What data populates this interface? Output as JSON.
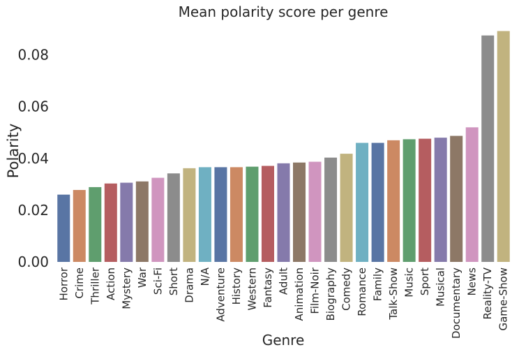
{
  "chart_data": {
    "type": "bar",
    "title": "Mean polarity score per genre",
    "xlabel": "Genre",
    "ylabel": "Polarity",
    "ylim": [
      0,
      0.09
    ],
    "yticks": [
      0.0,
      0.02,
      0.04,
      0.06,
      0.08
    ],
    "ytick_labels": [
      "0.00",
      "0.02",
      "0.04",
      "0.06",
      "0.08"
    ],
    "grid": false,
    "categories": [
      "Horror",
      "Crime",
      "Thriller",
      "Action",
      "Mystery",
      "War",
      "Sci-Fi",
      "Short",
      "Drama",
      "N/A",
      "Adventure",
      "History",
      "Western",
      "Fantasy",
      "Adult",
      "Animation",
      "Film-Noir",
      "Biography",
      "Comedy",
      "Romance",
      "Family",
      "Talk-Show",
      "Music",
      "Sport",
      "Musical",
      "Documentary",
      "News",
      "Reality-TV",
      "Game-Show"
    ],
    "values": [
      0.026,
      0.0278,
      0.0289,
      0.0303,
      0.0306,
      0.0311,
      0.0325,
      0.0342,
      0.0362,
      0.0366,
      0.0366,
      0.0366,
      0.0368,
      0.0371,
      0.0381,
      0.0384,
      0.0387,
      0.0403,
      0.0418,
      0.046,
      0.046,
      0.047,
      0.0474,
      0.0476,
      0.048,
      0.0487,
      0.052,
      0.0875,
      0.0892
    ],
    "bar_colors": [
      "#5975a4",
      "#cc8963",
      "#5f9e6e",
      "#b55d60",
      "#857aab",
      "#8d7866",
      "#d095bf",
      "#8c8c8c",
      "#c1b37f",
      "#6fb0c2",
      "#5975a4",
      "#cc8963",
      "#5f9e6e",
      "#b55d60",
      "#857aab",
      "#8d7866",
      "#d095bf",
      "#8c8c8c",
      "#c1b37f",
      "#6fb0c2",
      "#5975a4",
      "#cc8963",
      "#5f9e6e",
      "#b55d60",
      "#857aab",
      "#8d7866",
      "#d095bf",
      "#8c8c8c",
      "#c1b37f"
    ]
  }
}
